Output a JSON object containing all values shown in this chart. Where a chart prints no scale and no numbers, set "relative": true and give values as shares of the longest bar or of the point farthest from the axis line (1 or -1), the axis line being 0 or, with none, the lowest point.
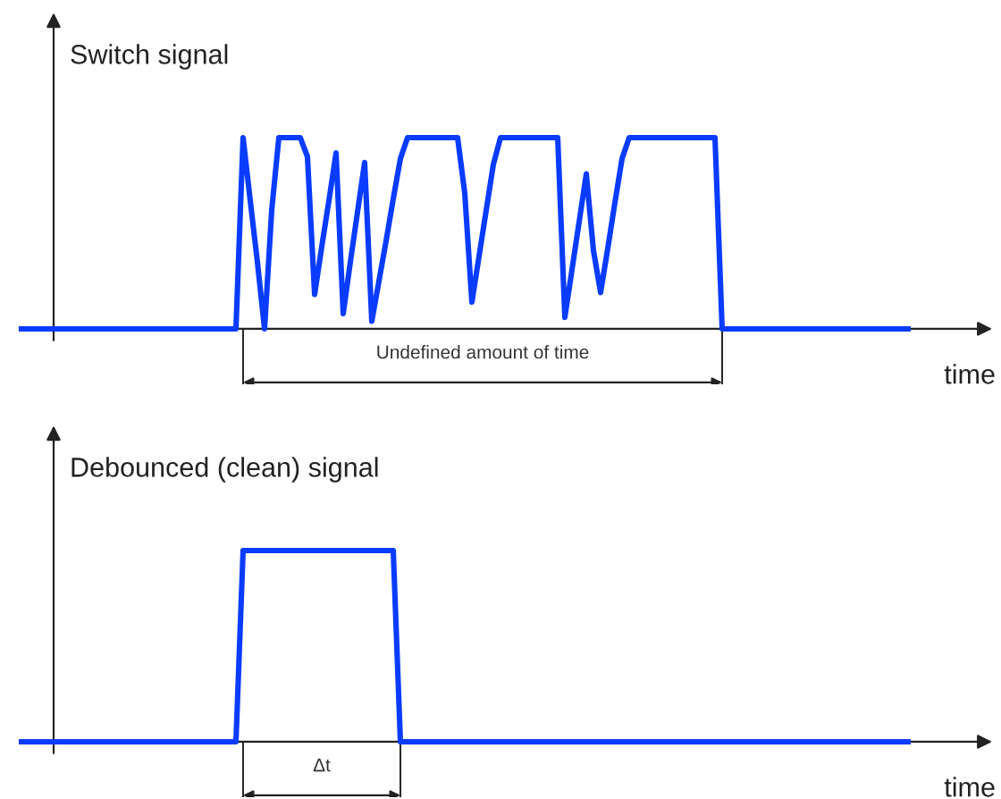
{
  "chart_data": [
    {
      "type": "line",
      "title": "Switch signal",
      "xlabel": "time",
      "relative": true,
      "categories": [
        null,
        null,
        null,
        null,
        null,
        null,
        null,
        null,
        null,
        null,
        null,
        null,
        null,
        null,
        null,
        null,
        null,
        null,
        null,
        null,
        null,
        null,
        null,
        null,
        null,
        null,
        null,
        null,
        null,
        null,
        null,
        null,
        null,
        null,
        null,
        null,
        null,
        null,
        null,
        null,
        null,
        null,
        null,
        null,
        null,
        null,
        null,
        null,
        null,
        null,
        null,
        null,
        null,
        null,
        null,
        null,
        null,
        null,
        null,
        null,
        null,
        null,
        null,
        null,
        null,
        null,
        null,
        null,
        null,
        null,
        null,
        null,
        null,
        null,
        null,
        null,
        null,
        null,
        null,
        null,
        null,
        null,
        null,
        null,
        null,
        null,
        null,
        null,
        null,
        null,
        null,
        null,
        null,
        null,
        null,
        null,
        null,
        null,
        null,
        null,
        null,
        null,
        null,
        null,
        null,
        null,
        null,
        null,
        null,
        null,
        null,
        null,
        null,
        null,
        null,
        null,
        null,
        null,
        null,
        null,
        null,
        null,
        null,
        null,
        null
      ],
      "series": [
        {
          "color": "#0a3cff",
          "values": [
            0,
            0,
            0,
            0,
            0,
            0,
            0,
            0,
            0,
            0,
            0,
            0,
            0,
            0,
            0,
            0,
            0,
            0,
            0,
            0,
            0,
            0,
            0,
            0,
            0,
            0,
            0,
            0,
            0,
            0,
            0,
            1,
            0.67,
            0.35,
            0,
            0.62,
            1,
            1,
            1,
            1,
            0.9,
            0.18,
            0.43,
            0.67,
            0.92,
            0.08,
            0.35,
            0.61,
            0.87,
            0.04,
            0.25,
            0.46,
            0.68,
            0.89,
            1,
            1,
            1,
            1,
            1,
            1,
            1,
            1,
            0.71,
            0.14,
            0.38,
            0.62,
            0.86,
            1,
            1,
            1,
            1,
            1,
            1,
            1,
            1,
            1,
            0.06,
            0.31,
            0.56,
            0.81,
            0.41,
            0.19,
            0.42,
            0.66,
            0.89,
            1,
            1,
            1,
            1,
            1,
            1,
            1,
            1,
            1,
            1,
            1,
            1,
            1,
            0,
            0,
            0,
            0,
            0,
            0,
            0,
            0,
            0,
            0,
            0,
            0,
            0,
            0,
            0,
            0,
            0,
            0,
            0,
            0,
            0,
            0,
            0,
            0,
            0,
            0,
            0
          ]
        }
      ],
      "annotations": [
        "Undefined amount of time"
      ]
    },
    {
      "type": "line",
      "title": "Debounced (clean) signal",
      "xlabel": "time",
      "relative": true,
      "categories": [
        null,
        null,
        null,
        null,
        null,
        null,
        null,
        null,
        null,
        null,
        null,
        null,
        null,
        null,
        null,
        null,
        null,
        null,
        null,
        null,
        null,
        null,
        null,
        null,
        null,
        null,
        null,
        null,
        null,
        null,
        null,
        null,
        null,
        null,
        null,
        null,
        null,
        null,
        null,
        null,
        null,
        null,
        null,
        null,
        null,
        null,
        null,
        null,
        null,
        null,
        null,
        null,
        null,
        null,
        null,
        null,
        null,
        null,
        null,
        null,
        null,
        null,
        null,
        null,
        null,
        null,
        null,
        null,
        null,
        null,
        null,
        null,
        null,
        null,
        null,
        null,
        null,
        null,
        null,
        null,
        null,
        null,
        null,
        null,
        null,
        null,
        null,
        null,
        null,
        null,
        null,
        null,
        null,
        null,
        null,
        null,
        null,
        null,
        null,
        null,
        null,
        null,
        null,
        null,
        null,
        null,
        null,
        null,
        null,
        null,
        null,
        null,
        null,
        null,
        null,
        null,
        null,
        null,
        null,
        null,
        null,
        null,
        null,
        null,
        null
      ],
      "series": [
        {
          "color": "#0a3cff",
          "values": [
            0,
            0,
            0,
            0,
            0,
            0,
            0,
            0,
            0,
            0,
            0,
            0,
            0,
            0,
            0,
            0,
            0,
            0,
            0,
            0,
            0,
            0,
            0,
            0,
            0,
            0,
            0,
            0,
            0,
            0,
            0,
            1,
            1,
            1,
            1,
            1,
            1,
            1,
            1,
            1,
            1,
            1,
            1,
            1,
            1,
            1,
            1,
            1,
            1,
            1,
            1,
            1,
            1,
            0,
            0,
            0,
            0,
            0,
            0,
            0,
            0,
            0,
            0,
            0,
            0,
            0,
            0,
            0,
            0,
            0,
            0,
            0,
            0,
            0,
            0,
            0,
            0,
            0,
            0,
            0,
            0,
            0,
            0,
            0,
            0,
            0,
            0,
            0,
            0,
            0,
            0,
            0,
            0,
            0,
            0,
            0,
            0,
            0,
            0,
            0,
            0,
            0,
            0,
            0,
            0,
            0,
            0,
            0,
            0,
            0,
            0,
            0,
            0,
            0,
            0,
            0,
            0,
            0,
            0,
            0,
            0,
            0,
            0,
            0,
            0
          ]
        }
      ],
      "annotations": [
        "Δt"
      ]
    }
  ]
}
